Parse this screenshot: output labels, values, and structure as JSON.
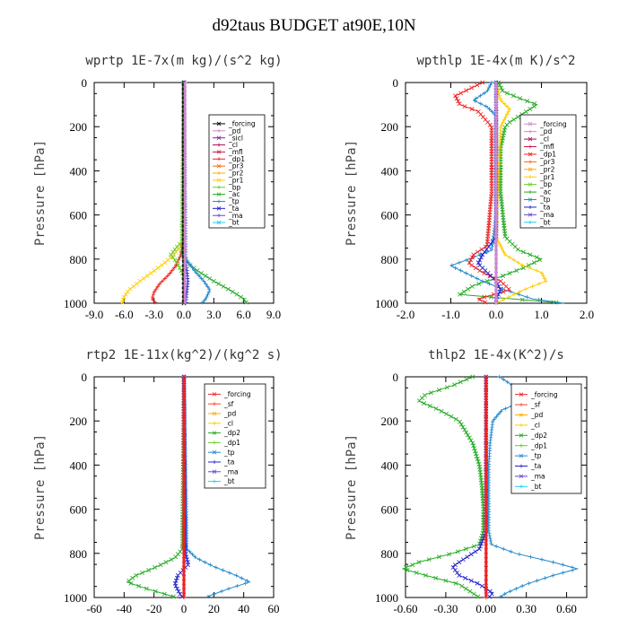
{
  "title": "d92taus  BUDGET at90E,10N",
  "chart_data": [
    {
      "type": "line",
      "title": "wprtp  1E-7x(m kg)/(s^2 kg)",
      "ylabel": "Pressure [hPa]",
      "xlim": [
        -9,
        9
      ],
      "ylim": [
        1000,
        0
      ],
      "xticks": [
        "-9.0",
        "-6.0",
        "-3.0",
        "0.0",
        "3.0",
        "6.0",
        "9.0"
      ],
      "xtick_values": [
        -9,
        -6,
        -3,
        0,
        3,
        6,
        9
      ],
      "yticks": [
        "0",
        "200",
        "400",
        "600",
        "800",
        "1000"
      ],
      "ytick_values": [
        0,
        200,
        400,
        600,
        800,
        1000
      ],
      "legend": [
        "_forcing",
        "_pd",
        "_sicl",
        "_cl",
        "_mfl",
        "_dp1",
        "_pr3",
        "_pr2",
        "_pr1",
        "_bp",
        "_ac",
        "_tp",
        "_ta",
        "_ma",
        "_bt"
      ],
      "legend_colors": [
        "#000000",
        "#cc88cc",
        "#8822aa",
        "#aa1155",
        "#cc1144",
        "#ee2222",
        "#ff6600",
        "#ffaa00",
        "#ffcc00",
        "#66cc22",
        "#22aa22",
        "#2288cc",
        "#2222cc",
        "#6644cc",
        "#22ccee"
      ],
      "series": [
        {
          "name": "_pr2",
          "color": "#ffcc00",
          "y": [
            0,
            700,
            740,
            780,
            820,
            860,
            900,
            940,
            970,
            1000
          ],
          "x": [
            0,
            0,
            -0.3,
            -1.0,
            -2.0,
            -3.2,
            -4.4,
            -5.5,
            -6.0,
            -6.2
          ]
        },
        {
          "name": "_pr1",
          "color": "#ee2222",
          "y": [
            0,
            700,
            780,
            830,
            870,
            910,
            950,
            980,
            1000
          ],
          "x": [
            0,
            0,
            -0.3,
            -0.8,
            -1.5,
            -2.4,
            -3.0,
            -3.2,
            -2.8
          ]
        },
        {
          "name": "_ac",
          "color": "#22aa22",
          "y": [
            0,
            720,
            780,
            820,
            860,
            900,
            940,
            980,
            1000
          ],
          "x": [
            0,
            0,
            -0.2,
            0.4,
            1.6,
            3.0,
            4.6,
            6.0,
            6.3
          ]
        },
        {
          "name": "_tp",
          "color": "#2288cc",
          "y": [
            0,
            800,
            860,
            900,
            940,
            980,
            1000
          ],
          "x": [
            0,
            0.2,
            1.2,
            2.0,
            2.6,
            2.2,
            1.8
          ]
        },
        {
          "name": "_bp",
          "color": "#66cc22",
          "y": [
            0,
            720,
            750,
            780,
            810,
            850,
            880
          ],
          "x": [
            0,
            -0.2,
            -0.8,
            -1.3,
            -0.8,
            -0.3,
            0
          ]
        },
        {
          "name": "_ta",
          "color": "#2222cc",
          "y": [
            0,
            800,
            850,
            900,
            950,
            1000
          ],
          "x": [
            0,
            0.1,
            0.3,
            0.4,
            0.3,
            0.2
          ]
        },
        {
          "name": "_forcing",
          "color": "#000000",
          "y": [
            0,
            1000
          ],
          "x": [
            0,
            0
          ]
        },
        {
          "name": "_pd",
          "color": "#cc88cc",
          "y": [
            0,
            1000
          ],
          "x": [
            0.1,
            0.1
          ]
        }
      ]
    },
    {
      "type": "line",
      "title": "wpthlp  1E-4x(m K)/s^2",
      "ylabel": "Pressure [hPa]",
      "xlim": [
        -2,
        2
      ],
      "ylim": [
        1000,
        0
      ],
      "xticks": [
        "-2.0",
        "-1.0",
        "0.0",
        "1.0",
        "2.0"
      ],
      "xtick_values": [
        -2,
        -1,
        0,
        1,
        2
      ],
      "yticks": [
        "0",
        "200",
        "400",
        "600",
        "800",
        "1000"
      ],
      "ytick_values": [
        0,
        200,
        400,
        600,
        800,
        1000
      ],
      "legend": [
        "_forcing",
        "_pd",
        "_cl",
        "_mfl",
        "_dp1",
        "_pr3",
        "_pr2",
        "_pr1",
        "_bp",
        "_ac",
        "_tp",
        "_ta",
        "_ma",
        "_bt"
      ],
      "legend_colors": [
        "#cc88cc",
        "#cc88cc",
        "#aa1155",
        "#cc1144",
        "#ee2222",
        "#ff6600",
        "#ffaa00",
        "#ffcc00",
        "#66cc22",
        "#22aa22",
        "#2288cc",
        "#2222cc",
        "#6644cc",
        "#22ccee"
      ],
      "series": [
        {
          "name": "_ac",
          "color": "#22aa22",
          "y": [
            0,
            40,
            70,
            100,
            140,
            180,
            200,
            300,
            500,
            700,
            760,
            800,
            840,
            880,
            920,
            960,
            1000
          ],
          "x": [
            0.05,
            0.15,
            0.5,
            0.9,
            0.6,
            0.3,
            0.2,
            0.1,
            0.1,
            0.2,
            0.5,
            1.0,
            0.6,
            0.1,
            -0.5,
            -0.8,
            1.5
          ]
        },
        {
          "name": "_tp",
          "color": "#2288cc",
          "y": [
            0,
            40,
            80,
            110,
            150,
            200,
            300,
            600,
            760,
            800,
            830,
            860,
            900,
            940,
            980,
            1000
          ],
          "x": [
            -0.1,
            -0.2,
            -0.5,
            -0.2,
            0,
            0,
            0,
            0,
            -0.1,
            -0.6,
            -1.0,
            -0.7,
            -0.3,
            0.2,
            0.8,
            1.5
          ]
        },
        {
          "name": "_pr1",
          "color": "#ee2222",
          "y": [
            0,
            30,
            60,
            100,
            130,
            200,
            500,
            740,
            780,
            820,
            860,
            900,
            940,
            980,
            1000
          ],
          "x": [
            -0.3,
            -0.6,
            -0.9,
            -0.8,
            -0.4,
            -0.1,
            -0.1,
            -0.2,
            -0.5,
            -0.6,
            -0.3,
            0.1,
            0.3,
            -0.4,
            -0.2
          ]
        },
        {
          "name": "_pr2",
          "color": "#ffcc00",
          "y": [
            0,
            80,
            120,
            200,
            700,
            780,
            830,
            860,
            900,
            940,
            980,
            1000
          ],
          "x": [
            0,
            0.1,
            0.3,
            0.1,
            0,
            0.2,
            0.6,
            1.0,
            1.1,
            0.6,
            0.2,
            0
          ]
        },
        {
          "name": "_ta",
          "color": "#2222cc",
          "y": [
            0,
            700,
            780,
            820,
            860,
            900,
            940,
            980,
            1000
          ],
          "x": [
            0,
            0,
            -0.3,
            -0.4,
            -0.2,
            0,
            0.1,
            0,
            0
          ]
        },
        {
          "name": "_forcing",
          "color": "#cc88cc",
          "y": [
            0,
            1000
          ],
          "x": [
            0,
            0
          ]
        }
      ]
    },
    {
      "type": "line",
      "title": "rtp2  1E-11x(kg^2)/(kg^2 s)",
      "ylabel": "Pressure [hPa]",
      "xlim": [
        -60,
        60
      ],
      "ylim": [
        1000,
        0
      ],
      "xticks": [
        "-60",
        "-40",
        "-20",
        "0",
        "20",
        "40",
        "60"
      ],
      "xtick_values": [
        -60,
        -40,
        -20,
        0,
        20,
        40,
        60
      ],
      "yticks": [
        "0",
        "200",
        "400",
        "600",
        "800",
        "1000"
      ],
      "ytick_values": [
        0,
        200,
        400,
        600,
        800,
        1000
      ],
      "legend": [
        "_forcing",
        "_sf",
        "_pd",
        "_cl",
        "_dp2",
        "_dp1",
        "_tp",
        "_ta",
        "_ma",
        "_bt"
      ],
      "legend_colors": [
        "#ee2222",
        "#ff4422",
        "#ffaa00",
        "#ffcc00",
        "#22aa22",
        "#66cc22",
        "#2288cc",
        "#2222cc",
        "#6644cc",
        "#22ccee"
      ],
      "series": [
        {
          "name": "_dp2",
          "color": "#22aa22",
          "y": [
            0,
            780,
            820,
            860,
            900,
            930,
            960,
            990,
            1000
          ],
          "x": [
            0,
            -1,
            -6,
            -18,
            -32,
            -38,
            -25,
            -10,
            -5
          ]
        },
        {
          "name": "_tp",
          "color": "#2288cc",
          "y": [
            0,
            780,
            820,
            860,
            900,
            930,
            960,
            990,
            1000
          ],
          "x": [
            0,
            2,
            8,
            20,
            35,
            44,
            30,
            18,
            15
          ]
        },
        {
          "name": "_ta",
          "color": "#2222cc",
          "y": [
            0,
            800,
            850,
            900,
            940,
            980,
            1000
          ],
          "x": [
            0,
            1,
            3,
            -4,
            -6,
            -3,
            -1
          ]
        },
        {
          "name": "_forcing",
          "color": "#ee2222",
          "y": [
            0,
            1000
          ],
          "x": [
            0,
            0
          ]
        }
      ]
    },
    {
      "type": "line",
      "title": "thlp2  1E-4x(K^2)/s",
      "ylabel": "Pressure [hPa]",
      "xlim": [
        -0.6,
        0.75
      ],
      "ylim": [
        1000,
        0
      ],
      "xticks": [
        "-0.60",
        "-0.30",
        "0.00",
        "0.30",
        "0.60"
      ],
      "xtick_values": [
        -0.6,
        -0.3,
        0,
        0.3,
        0.6
      ],
      "yticks": [
        "0",
        "200",
        "400",
        "600",
        "800",
        "1000"
      ],
      "ytick_values": [
        0,
        200,
        400,
        600,
        800,
        1000
      ],
      "legend": [
        "_forcing",
        "_sf",
        "_pd",
        "_cl",
        "_dp2",
        "_dp1",
        "_tp",
        "_ta",
        "_ma",
        "_bt"
      ],
      "legend_colors": [
        "#ee2222",
        "#ff4422",
        "#ffaa00",
        "#ffcc00",
        "#22aa22",
        "#66cc22",
        "#2288cc",
        "#2222cc",
        "#6644cc",
        "#22ccee"
      ],
      "series": [
        {
          "name": "_dp2",
          "color": "#22aa22",
          "y": [
            0,
            40,
            80,
            110,
            150,
            200,
            300,
            400,
            500,
            600,
            700,
            760,
            800,
            840,
            870,
            900,
            940,
            980,
            1000
          ],
          "x": [
            -0.1,
            -0.25,
            -0.45,
            -0.5,
            -0.35,
            -0.2,
            -0.1,
            -0.05,
            -0.03,
            -0.02,
            -0.02,
            -0.05,
            -0.25,
            -0.5,
            -0.62,
            -0.45,
            -0.2,
            -0.1,
            -0.05
          ]
        },
        {
          "name": "_tp",
          "color": "#2288cc",
          "y": [
            0,
            40,
            80,
            110,
            150,
            200,
            300,
            400,
            500,
            600,
            700,
            760,
            800,
            840,
            870,
            900,
            940,
            980,
            1000
          ],
          "x": [
            0.1,
            0.2,
            0.35,
            0.28,
            0.12,
            0.05,
            0.03,
            0.02,
            0.02,
            0.02,
            0.02,
            0.04,
            0.22,
            0.5,
            0.68,
            0.5,
            0.3,
            0.15,
            0.1
          ]
        },
        {
          "name": "_ta",
          "color": "#2222cc",
          "y": [
            0,
            700,
            780,
            820,
            860,
            900,
            940,
            980,
            1000
          ],
          "x": [
            0,
            0,
            -0.05,
            -0.15,
            -0.25,
            -0.2,
            -0.05,
            0.05,
            0.02
          ]
        },
        {
          "name": "_forcing",
          "color": "#ee2222",
          "y": [
            0,
            1000
          ],
          "x": [
            0,
            0
          ]
        }
      ]
    }
  ]
}
